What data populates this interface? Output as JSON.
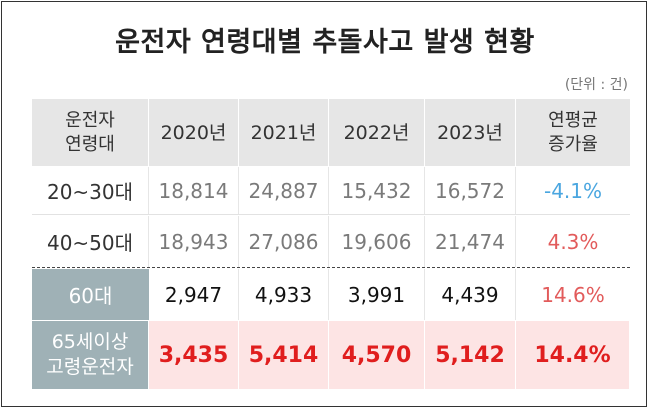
{
  "title": "운전자 연령대별 추돌사고 발생 현황",
  "unit": "(단위 : 건)",
  "headers": {
    "group_line1": "운전자",
    "group_line2": "연령대",
    "years": [
      "2020년",
      "2021년",
      "2022년",
      "2023년"
    ],
    "growth_line1": "연평균",
    "growth_line2": "증가율"
  },
  "rows": [
    {
      "label": "20~30대",
      "values": [
        "18,814",
        "24,887",
        "15,432",
        "16,572"
      ],
      "growth": "-4.1%"
    },
    {
      "label": "40~50대",
      "values": [
        "18,943",
        "27,086",
        "19,606",
        "21,474"
      ],
      "growth": "4.3%"
    },
    {
      "label": "60대",
      "values": [
        "2,947",
        "4,933",
        "3,991",
        "4,439"
      ],
      "growth": "14.6%"
    },
    {
      "label_line1": "65세이상",
      "label_line2": "고령운전자",
      "values": [
        "3,435",
        "5,414",
        "4,570",
        "5,142"
      ],
      "growth": "14.4%"
    }
  ],
  "colors": {
    "header_bg": "#e6e6e6",
    "label_bg": "#9fb1b6",
    "highlight_bg": "#fde4e4",
    "highlight_text": "#e01e1e",
    "negative": "#4aa6e0",
    "positive": "#e25b5b"
  }
}
